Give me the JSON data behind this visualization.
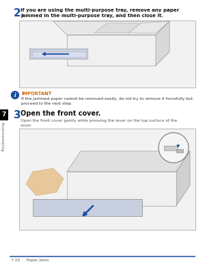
{
  "page_bg": "#ffffff",
  "step2_num": "2",
  "step2_text": "If you are using the multi-purpose tray, remove any paper\njammed in the multi-purpose tray, and then close it.",
  "important_label": "IMPORTANT",
  "important_label_color": "#cc6600",
  "important_icon_color": "#1a4d9f",
  "important_body": "If the jammed paper cannot be removed easily, do not try to remove it forcefully but\nproceed to the next step.",
  "step3_num": "3",
  "step3_text": "Open the front cover.",
  "step3_body": "Open the front cover gently while pressing the lever on the top surface of the\ncover.",
  "sidebar_bg": "#000000",
  "footer_line_color": "#2a5aaa",
  "footer_text": "7-10     Paper Jams",
  "step_num_color": "#1a4d9f",
  "img_border": "#aaaaaa",
  "img_bg": "#f2f2f2"
}
